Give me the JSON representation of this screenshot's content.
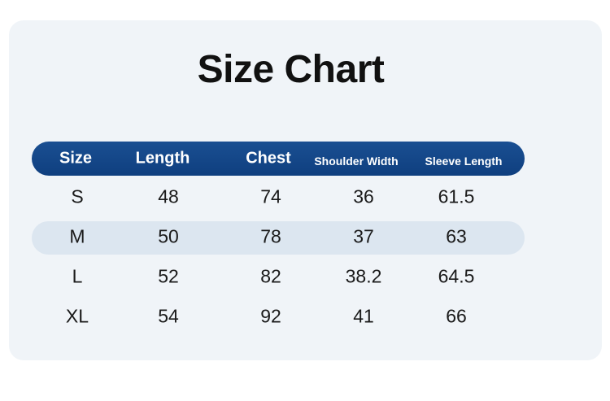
{
  "title": "Size Chart",
  "colors": {
    "header_bg": "#124585",
    "stripe_bg": "#dce6f0",
    "card_bg": "#f0f4f8"
  },
  "headers": [
    "Size",
    "Length",
    "Chest",
    "Shoulder Width",
    "Sleeve Length"
  ],
  "rows": [
    [
      "S",
      "48",
      "74",
      "36",
      "61.5"
    ],
    [
      "M",
      "50",
      "78",
      "37",
      "63"
    ],
    [
      "L",
      "52",
      "82",
      "38.2",
      "64.5"
    ],
    [
      "XL",
      "54",
      "92",
      "41",
      "66"
    ]
  ]
}
